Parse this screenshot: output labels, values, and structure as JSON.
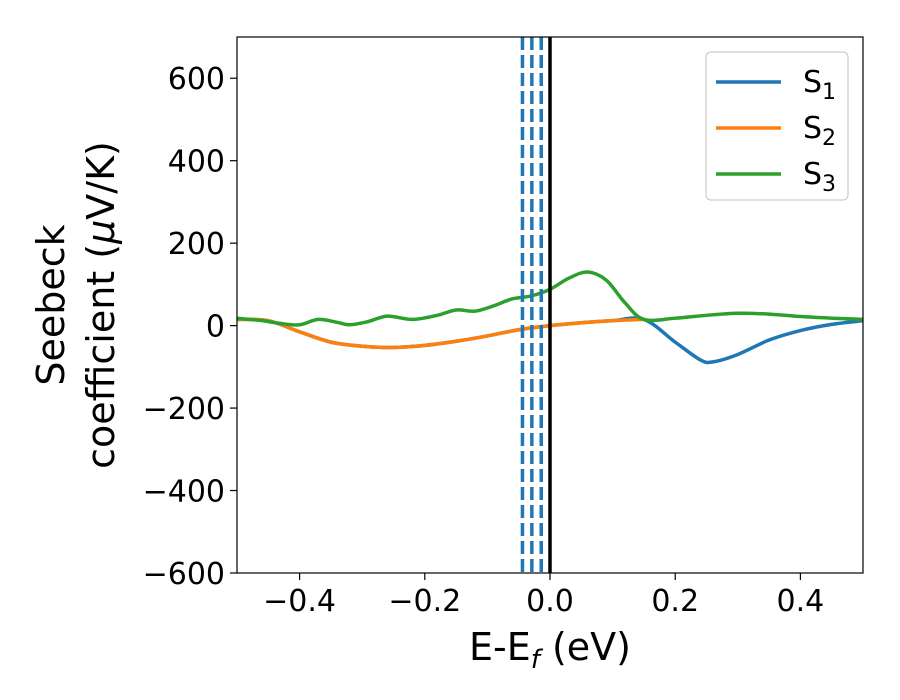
{
  "chart_data": {
    "type": "line",
    "title": "",
    "xlabel": "E-E",
    "xlabel_sub": "f",
    "xlabel_unit": " (eV)",
    "ylabel_line1": "Seebeck",
    "ylabel_line2_prefix": "coefficient  (",
    "ylabel_mu": "μ",
    "ylabel_line2_suffix": "V/K)",
    "xlim": [
      -0.5,
      0.5
    ],
    "ylim": [
      -600,
      700
    ],
    "xticks": [
      -0.4,
      -0.2,
      0.0,
      0.2,
      0.4
    ],
    "xtick_labels": [
      "−0.4",
      "−0.2",
      "0.0",
      "0.2",
      "0.4"
    ],
    "yticks": [
      -600,
      -400,
      -200,
      0,
      200,
      400,
      600
    ],
    "ytick_labels": [
      "−600",
      "−400",
      "−200",
      "0",
      "200",
      "400",
      "600"
    ],
    "grid": false,
    "legend_position": "top-right",
    "vertical_lines": [
      {
        "x": -0.044,
        "style": "dashed",
        "color": "#1f77b4"
      },
      {
        "x": -0.029,
        "style": "dashed",
        "color": "#1f77b4"
      },
      {
        "x": -0.014,
        "style": "dashed",
        "color": "#1f77b4"
      },
      {
        "x": 0.0,
        "style": "solid",
        "color": "#000000"
      }
    ],
    "series": [
      {
        "name": "S",
        "sub": "1",
        "color": "#1f77b4",
        "x": [
          -0.5,
          -0.45,
          -0.4,
          -0.35,
          -0.3,
          -0.25,
          -0.2,
          -0.15,
          -0.1,
          -0.05,
          0.0,
          0.05,
          0.1,
          0.15,
          0.2,
          0.24,
          0.26,
          0.3,
          0.35,
          0.4,
          0.45,
          0.5
        ],
        "y": [
          15,
          12,
          -15,
          -40,
          -50,
          -53,
          -48,
          -38,
          -25,
          -10,
          0,
          7,
          12,
          15,
          -40,
          -83,
          -88,
          -70,
          -35,
          -12,
          3,
          12
        ]
      },
      {
        "name": "S",
        "sub": "2",
        "color": "#ff7f0e",
        "x": [
          -0.5,
          -0.45,
          -0.4,
          -0.35,
          -0.3,
          -0.25,
          -0.2,
          -0.15,
          -0.1,
          -0.05,
          0.0,
          0.05,
          0.1,
          0.15
        ],
        "y": [
          15,
          12,
          -15,
          -40,
          -50,
          -53,
          -48,
          -38,
          -25,
          -10,
          0,
          7,
          12,
          15
        ]
      },
      {
        "name": "S",
        "sub": "3",
        "color": "#2ca02c",
        "x": [
          -0.5,
          -0.46,
          -0.43,
          -0.4,
          -0.37,
          -0.34,
          -0.32,
          -0.29,
          -0.26,
          -0.22,
          -0.18,
          -0.15,
          -0.12,
          -0.09,
          -0.06,
          -0.03,
          0.0,
          0.03,
          0.06,
          0.09,
          0.12,
          0.15,
          0.2,
          0.25,
          0.3,
          0.35,
          0.4,
          0.45,
          0.5
        ],
        "y": [
          18,
          12,
          5,
          2,
          15,
          8,
          2,
          10,
          23,
          15,
          25,
          38,
          35,
          48,
          65,
          72,
          88,
          115,
          130,
          110,
          55,
          15,
          18,
          25,
          30,
          28,
          22,
          18,
          15
        ]
      }
    ]
  }
}
